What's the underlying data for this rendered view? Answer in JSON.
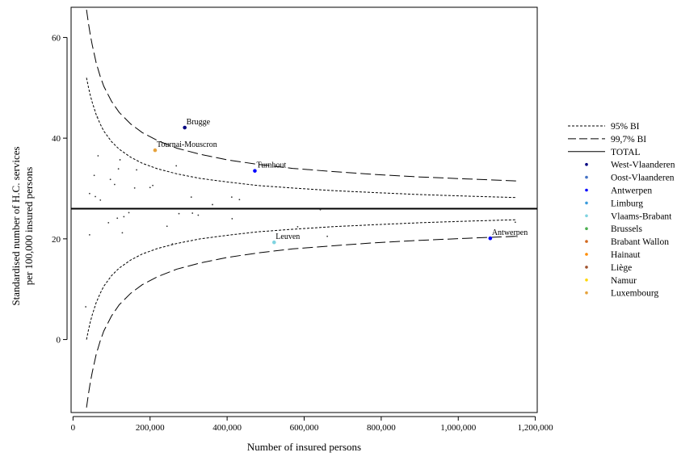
{
  "chart_data": {
    "type": "scatter",
    "xlabel": "Number of insured persons",
    "ylabel": [
      "Standardised number of H.C. services",
      "per 100,000 insured persons"
    ],
    "xlim": [
      -5000,
      1205000
    ],
    "ylim": [
      -14.5,
      66
    ],
    "xticks": [
      0,
      200000,
      400000,
      600000,
      800000,
      1000000,
      1200000
    ],
    "xtick_labels": [
      "0",
      "200,000",
      "400,000",
      "600,000",
      "800,000",
      "1,000,000",
      "1,200,000"
    ],
    "yticks": [
      0,
      20,
      40,
      60
    ],
    "ytick_labels": [
      "0",
      "20",
      "40",
      "60"
    ],
    "total_line": 26,
    "legend_position": "right",
    "legend": [
      {
        "label": "95% BI",
        "kind": "dotted"
      },
      {
        "label": "99,7% BI",
        "kind": "dashed"
      },
      {
        "label": "TOTAL",
        "kind": "solid"
      },
      {
        "label": "West-Vlaanderen",
        "kind": "point",
        "color": "#000080"
      },
      {
        "label": "Oost-Vlaanderen",
        "kind": "point",
        "color": "#4472c4"
      },
      {
        "label": "Antwerpen",
        "kind": "point",
        "color": "#0000ff"
      },
      {
        "label": "Limburg",
        "kind": "point",
        "color": "#3a9bdc"
      },
      {
        "label": "Vlaams-Brabant",
        "kind": "point",
        "color": "#7fd3e0"
      },
      {
        "label": "Brussels",
        "kind": "point",
        "color": "#4caf50"
      },
      {
        "label": "Brabant Wallon",
        "kind": "point",
        "color": "#d2691e"
      },
      {
        "label": "Hainaut",
        "kind": "point",
        "color": "#ff8c00"
      },
      {
        "label": "Liège",
        "kind": "point",
        "color": "#a0522d"
      },
      {
        "label": "Namur",
        "kind": "point",
        "color": "#ffd700"
      },
      {
        "label": "Luxembourg",
        "kind": "point",
        "color": "#e6a23c"
      }
    ],
    "bands": {
      "x": [
        35000,
        40000,
        45000,
        50000,
        60000,
        70000,
        80000,
        100000,
        120000,
        150000,
        180000,
        220000,
        270000,
        330000,
        400000,
        480000,
        570000,
        670000,
        780000,
        900000,
        1020000,
        1150000
      ],
      "upper_99": [
        65.5,
        62.8,
        60.5,
        58.5,
        55.0,
        52.4,
        50.3,
        47.3,
        45.1,
        42.8,
        41.1,
        39.5,
        38.0,
        36.8,
        35.7,
        34.8,
        34.0,
        33.4,
        32.8,
        32.3,
        31.9,
        31.5
      ],
      "upper_95": [
        52.0,
        50.1,
        48.5,
        47.1,
        44.7,
        42.9,
        41.4,
        39.3,
        37.8,
        36.2,
        35.0,
        33.9,
        32.9,
        32.0,
        31.3,
        30.6,
        30.1,
        29.6,
        29.2,
        28.8,
        28.5,
        28.2
      ],
      "lower_95": [
        0.0,
        1.9,
        3.5,
        4.9,
        7.3,
        9.1,
        10.6,
        12.7,
        14.2,
        15.8,
        17.0,
        18.1,
        19.1,
        20.0,
        20.7,
        21.4,
        21.9,
        22.4,
        22.8,
        23.2,
        23.5,
        23.8
      ],
      "lower_99": [
        -13.5,
        -10.8,
        -8.5,
        -6.5,
        -3.0,
        -0.4,
        1.7,
        4.7,
        6.9,
        9.2,
        10.9,
        12.5,
        14.0,
        15.2,
        16.3,
        17.2,
        18.0,
        18.6,
        19.2,
        19.7,
        20.1,
        20.5
      ]
    },
    "labeled_points": [
      {
        "name": "Brugge",
        "x": 290000,
        "y": 42.1,
        "color": "#000080"
      },
      {
        "name": "Tournai-Mouscron",
        "x": 213000,
        "y": 37.6,
        "color": "#e6a23c"
      },
      {
        "name": "Turnhout",
        "x": 472000,
        "y": 33.5,
        "color": "#0000ff"
      },
      {
        "name": "Leuven",
        "x": 522000,
        "y": 19.3,
        "color": "#7fd3e0"
      },
      {
        "name": "Antwerpen",
        "x": 1083000,
        "y": 20.1,
        "color": "#0000ff"
      }
    ],
    "small_points": [
      {
        "x": 63000,
        "y": 44.2
      },
      {
        "x": 65000,
        "y": 36.5
      },
      {
        "x": 55000,
        "y": 32.6
      },
      {
        "x": 122000,
        "y": 35.7
      },
      {
        "x": 118000,
        "y": 33.9
      },
      {
        "x": 97000,
        "y": 31.8
      },
      {
        "x": 108000,
        "y": 30.8
      },
      {
        "x": 165000,
        "y": 33.7
      },
      {
        "x": 160000,
        "y": 30.1
      },
      {
        "x": 200000,
        "y": 30.2
      },
      {
        "x": 207000,
        "y": 30.6
      },
      {
        "x": 268000,
        "y": 34.5
      },
      {
        "x": 43000,
        "y": 29.0
      },
      {
        "x": 58000,
        "y": 28.4
      },
      {
        "x": 71000,
        "y": 27.7
      },
      {
        "x": 307000,
        "y": 28.3
      },
      {
        "x": 412000,
        "y": 28.3
      },
      {
        "x": 432000,
        "y": 27.8
      },
      {
        "x": 362000,
        "y": 26.8
      },
      {
        "x": 642000,
        "y": 25.8
      },
      {
        "x": 132000,
        "y": 24.4
      },
      {
        "x": 115000,
        "y": 24.1
      },
      {
        "x": 145000,
        "y": 25.2
      },
      {
        "x": 275000,
        "y": 25.0
      },
      {
        "x": 310000,
        "y": 25.1
      },
      {
        "x": 325000,
        "y": 24.7
      },
      {
        "x": 413000,
        "y": 24.0
      },
      {
        "x": 92000,
        "y": 23.2
      },
      {
        "x": 244000,
        "y": 22.5
      },
      {
        "x": 583000,
        "y": 22.4
      },
      {
        "x": 1148000,
        "y": 23.3
      },
      {
        "x": 128000,
        "y": 21.2
      },
      {
        "x": 43000,
        "y": 20.8
      },
      {
        "x": 660000,
        "y": 20.5
      },
      {
        "x": 258000,
        "y": 19.0
      },
      {
        "x": 33000,
        "y": 6.5
      }
    ]
  }
}
